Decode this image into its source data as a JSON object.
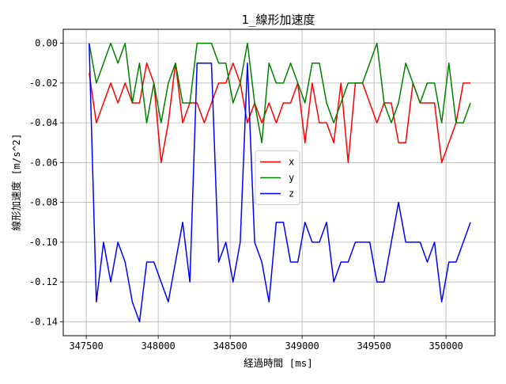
{
  "chart_data": {
    "type": "line",
    "title": "1_線形加速度",
    "xlabel": "経過時間 [ms]",
    "ylabel": "線形加速度 [m/s^2]",
    "xlim": [
      347340,
      350340
    ],
    "ylim": [
      -0.147,
      0.007
    ],
    "x_ticks": [
      347500,
      348000,
      348500,
      349000,
      349500,
      350000
    ],
    "y_ticks": [
      0.0,
      -0.02,
      -0.04,
      -0.06,
      -0.08,
      -0.1,
      -0.12,
      -0.14
    ],
    "x_tick_labels": [
      "347500",
      "348000",
      "348500",
      "349000",
      "349500",
      "350000"
    ],
    "y_tick_labels": [
      "0.00",
      "-0.02",
      "-0.04",
      "-0.06",
      "-0.08",
      "-0.10",
      "-0.12",
      "-0.14"
    ],
    "grid": true,
    "legend_position": "center",
    "x": [
      347520,
      347570,
      347620,
      347670,
      347720,
      347770,
      347820,
      347870,
      347920,
      347970,
      348020,
      348070,
      348120,
      348170,
      348220,
      348270,
      348320,
      348370,
      348420,
      348470,
      348520,
      348570,
      348620,
      348670,
      348720,
      348770,
      348820,
      348870,
      348920,
      348970,
      349020,
      349070,
      349120,
      349170,
      349220,
      349270,
      349320,
      349370,
      349420,
      349470,
      349520,
      349570,
      349620,
      349670,
      349720,
      349770,
      349820,
      349870,
      349920,
      349970,
      350020,
      350070,
      350120,
      350170
    ],
    "series": [
      {
        "name": "x",
        "color": "#ff0000",
        "values": [
          -0.015,
          -0.04,
          -0.03,
          -0.02,
          -0.03,
          -0.02,
          -0.03,
          -0.03,
          -0.01,
          -0.02,
          -0.06,
          -0.04,
          -0.01,
          -0.04,
          -0.03,
          -0.03,
          -0.04,
          -0.03,
          -0.02,
          -0.02,
          -0.01,
          -0.02,
          -0.04,
          -0.03,
          -0.04,
          -0.03,
          -0.04,
          -0.03,
          -0.03,
          -0.02,
          -0.05,
          -0.02,
          -0.04,
          -0.04,
          -0.05,
          -0.02,
          -0.06,
          -0.02,
          -0.02,
          -0.03,
          -0.04,
          -0.03,
          -0.03,
          -0.05,
          -0.05,
          -0.02,
          -0.03,
          -0.03,
          -0.03,
          -0.06,
          -0.05,
          -0.04,
          -0.02,
          -0.02
        ]
      },
      {
        "name": "y",
        "color": "#008000",
        "values": [
          0.0,
          -0.02,
          -0.01,
          0.0,
          -0.01,
          0.0,
          -0.03,
          -0.01,
          -0.04,
          -0.02,
          -0.04,
          -0.02,
          -0.01,
          -0.03,
          -0.03,
          0.0,
          0.0,
          0.0,
          -0.01,
          -0.01,
          -0.03,
          -0.02,
          0.0,
          -0.03,
          -0.05,
          -0.01,
          -0.02,
          -0.02,
          -0.01,
          -0.02,
          -0.03,
          -0.01,
          -0.01,
          -0.03,
          -0.04,
          -0.03,
          -0.02,
          -0.02,
          -0.02,
          -0.01,
          0.0,
          -0.03,
          -0.04,
          -0.03,
          -0.01,
          -0.02,
          -0.03,
          -0.02,
          -0.02,
          -0.04,
          -0.01,
          -0.04,
          -0.04,
          -0.03
        ]
      },
      {
        "name": "z",
        "color": "#0000ff",
        "values": [
          0.0,
          -0.13,
          -0.1,
          -0.12,
          -0.1,
          -0.11,
          -0.13,
          -0.14,
          -0.11,
          -0.11,
          -0.12,
          -0.13,
          -0.11,
          -0.09,
          -0.12,
          -0.01,
          -0.01,
          -0.01,
          -0.11,
          -0.1,
          -0.12,
          -0.1,
          -0.01,
          -0.1,
          -0.11,
          -0.13,
          -0.09,
          -0.09,
          -0.11,
          -0.11,
          -0.09,
          -0.1,
          -0.1,
          -0.09,
          -0.12,
          -0.11,
          -0.11,
          -0.1,
          -0.1,
          -0.1,
          -0.12,
          -0.12,
          -0.1,
          -0.08,
          -0.1,
          -0.1,
          -0.1,
          -0.11,
          -0.1,
          -0.13,
          -0.11,
          -0.11,
          -0.1,
          -0.09
        ]
      }
    ]
  }
}
